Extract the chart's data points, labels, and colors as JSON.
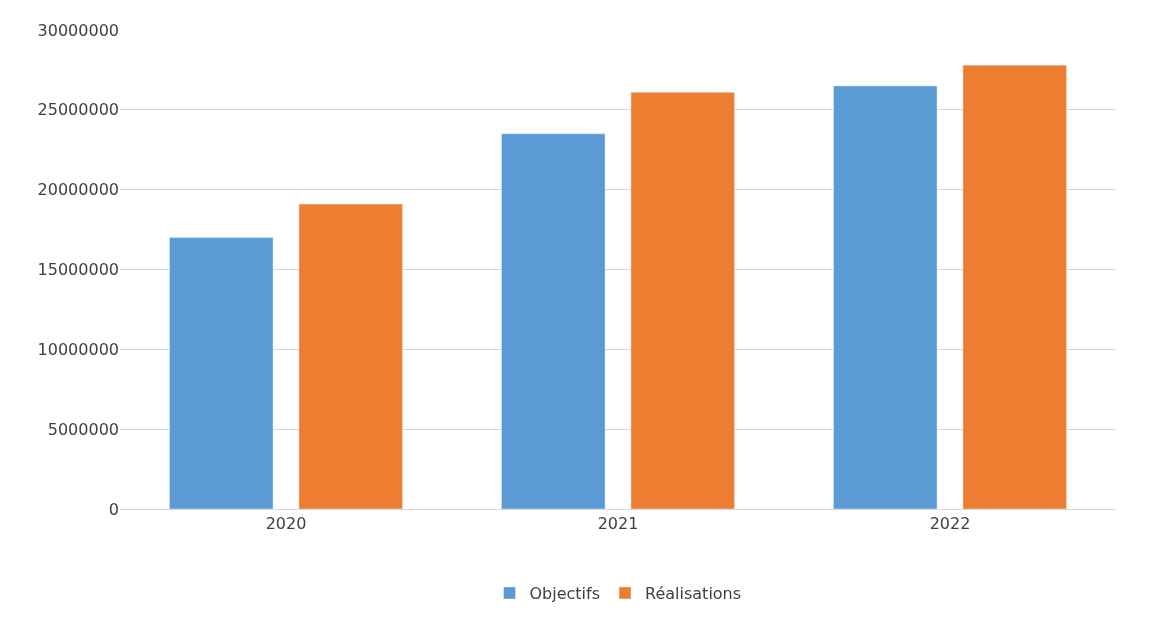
{
  "chart_data": {
    "type": "bar",
    "categories": [
      "2020",
      "2021",
      "2022"
    ],
    "series": [
      {
        "name": "Objectifs",
        "color": "#5b9bd5",
        "values": [
          17000000,
          23500000,
          26500000
        ]
      },
      {
        "name": "Réalisations",
        "color": "#ed7d31",
        "values": [
          19100000,
          26100000,
          27800000
        ]
      }
    ],
    "ylim": [
      0,
      30000000
    ],
    "yticks": [
      0,
      5000000,
      10000000,
      15000000,
      20000000,
      25000000,
      30000000
    ],
    "grid": "y",
    "legend": "bottom"
  }
}
